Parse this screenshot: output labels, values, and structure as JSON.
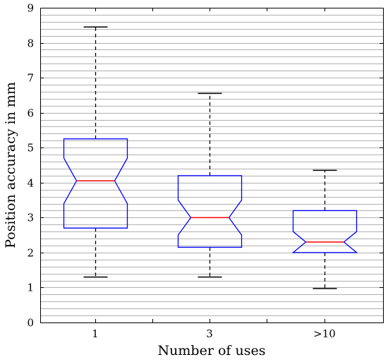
{
  "chart_data": {
    "type": "boxplot",
    "title": "",
    "xlabel": "Number of uses",
    "ylabel": "Position accuracy in mm",
    "ylim": [
      0,
      9
    ],
    "yticks": [
      0,
      1,
      2,
      3,
      4,
      5,
      6,
      7,
      8,
      9
    ],
    "minor_grid_step": 0.2,
    "grid": true,
    "notched": true,
    "categories": [
      "1",
      "3",
      ">10"
    ],
    "boxes": [
      {
        "category": "1",
        "whisker_low": 1.3,
        "q1": 2.7,
        "notch_low": 3.4,
        "median": 4.05,
        "notch_high": 4.7,
        "q3": 5.25,
        "whisker_high": 8.45
      },
      {
        "category": "3",
        "whisker_low": 1.3,
        "q1": 2.15,
        "notch_low": 2.5,
        "median": 3.0,
        "notch_high": 3.5,
        "q3": 4.2,
        "whisker_high": 6.55
      },
      {
        "category": ">10",
        "whisker_low": 0.97,
        "q1": 2.0,
        "notch_low": 2.0,
        "median": 2.3,
        "notch_high": 2.6,
        "q3": 3.2,
        "whisker_high": 4.35
      }
    ],
    "colors": {
      "box": "#0000ff",
      "median": "#ff0000",
      "whisker": "#000000",
      "grid": "#b0b0b0",
      "frame": "#000000"
    }
  }
}
